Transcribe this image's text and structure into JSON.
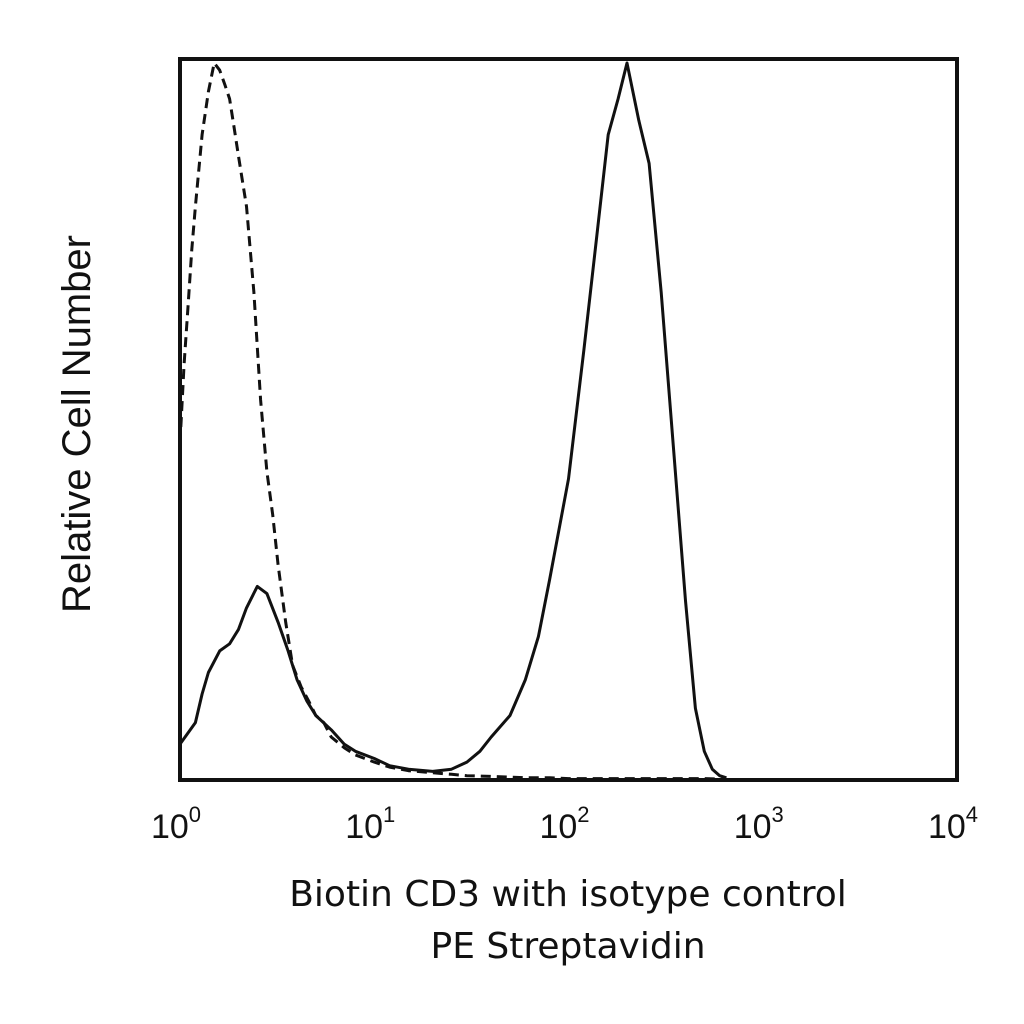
{
  "chart_data": {
    "type": "line",
    "title": "",
    "xlabel_line1": "Biotin CD3 with isotype control",
    "xlabel_line2": "PE Streptavidin",
    "ylabel": "Relative Cell Number",
    "x_scale": "log",
    "xlim": [
      1,
      10000
    ],
    "ylim": [
      0,
      100
    ],
    "grid": false,
    "legend": "none",
    "x_ticks": [
      {
        "base": "10",
        "exp": "0",
        "value": 1
      },
      {
        "base": "10",
        "exp": "1",
        "value": 10
      },
      {
        "base": "10",
        "exp": "2",
        "value": 100
      },
      {
        "base": "10",
        "exp": "3",
        "value": 1000
      },
      {
        "base": "10",
        "exp": "4",
        "value": 10000
      }
    ],
    "series": [
      {
        "style": "dashed",
        "color": "#111111",
        "x": [
          1.0,
          1.05,
          1.1,
          1.15,
          1.2,
          1.3,
          1.4,
          1.5,
          1.6,
          1.7,
          1.8,
          1.9,
          2.0,
          2.2,
          2.4,
          2.6,
          2.8,
          3.0,
          3.2,
          3.5,
          3.8,
          4.2,
          4.6,
          5.0,
          5.5,
          6.0,
          7.0,
          8.0,
          10.0,
          12.0,
          15.0,
          20.0,
          25.0,
          30.0,
          40.0,
          50.0,
          60.0,
          80.0,
          100.0,
          200.0,
          500.0,
          650.0
        ],
        "y": [
          47,
          58,
          66,
          74,
          80,
          90,
          96,
          100,
          99,
          97,
          95,
          91,
          87,
          80,
          68,
          53,
          43,
          37,
          30,
          22,
          16,
          13,
          11,
          9,
          8,
          6,
          4.5,
          3.5,
          2.5,
          1.8,
          1.3,
          1.0,
          0.8,
          0.6,
          0.5,
          0.4,
          0.3,
          0.3,
          0.2,
          0.2,
          0.2,
          0.1
        ]
      },
      {
        "style": "solid",
        "color": "#111111",
        "x": [
          1.0,
          1.2,
          1.3,
          1.4,
          1.6,
          1.8,
          2.0,
          2.2,
          2.5,
          2.8,
          3.2,
          3.6,
          4.0,
          4.5,
          5.0,
          6.0,
          7.0,
          8.0,
          10.0,
          12.0,
          15.0,
          20.0,
          25.0,
          30.0,
          35.0,
          40.0,
          50.0,
          60.0,
          70.0,
          80.0,
          100.0,
          120.0,
          140.0,
          160.0,
          180.0,
          200.0,
          230.0,
          260.0,
          300.0,
          350.0,
          400.0,
          450.0,
          500.0,
          550.0,
          600.0,
          650.0
        ],
        "y": [
          5,
          8,
          12,
          15,
          18,
          19,
          21,
          24,
          27,
          26,
          22,
          18,
          14,
          11,
          9,
          7,
          5,
          4,
          3,
          2,
          1.5,
          1.2,
          1.5,
          2.5,
          4,
          6,
          9,
          14,
          20,
          28,
          42,
          60,
          76,
          90,
          95,
          100,
          92,
          86,
          68,
          45,
          25,
          10,
          4,
          1.5,
          0.6,
          0.3
        ]
      }
    ]
  }
}
